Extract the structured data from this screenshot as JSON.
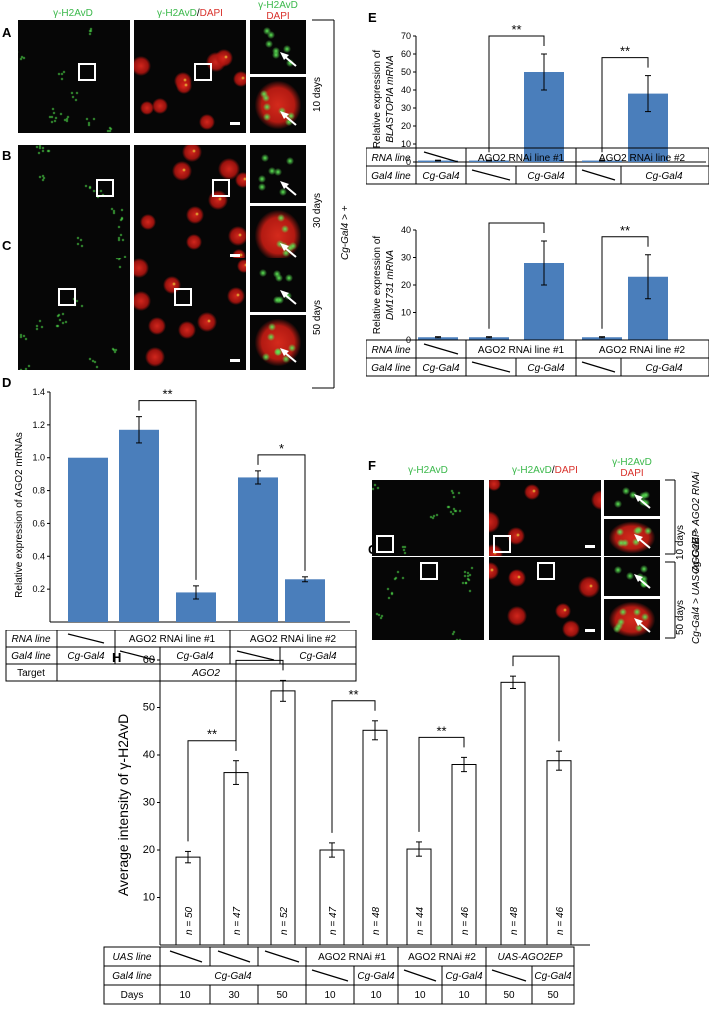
{
  "panel_labels": {
    "A": "A",
    "B": "B",
    "C": "C",
    "D": "D",
    "E": "E",
    "F": "F",
    "G": "G",
    "H": "H"
  },
  "micro_headers": {
    "col1": "γ-H2AvD",
    "col2_green": "γ-H2AvD",
    "col2_sep": "/",
    "col2_red": "DAPI",
    "col3_green": "γ-H2AvD",
    "col3_red": "DAPI"
  },
  "abc_side": {
    "genotype": "Cg-Gal4 > +",
    "rows": [
      "10 days",
      "30 days",
      "50 days"
    ]
  },
  "fg_side": {
    "F_days": "10 days",
    "F_genotype": "Cg-Gal4 > AGO2 RNAi",
    "G_days": "50 days",
    "G_genotype": "Cg-Gal4 > UAS-AGO2EP"
  },
  "colors": {
    "bar_fill": "#4a7ebb",
    "nucleus_red": "#c8201a",
    "focus_green": "#3fd43a",
    "micro_bg": "#060606"
  },
  "chart_data": [
    {
      "panel": "D",
      "type": "bar",
      "ylabel": "Relative expression of AGO2 mRNAs",
      "ylim": [
        0,
        1.4
      ],
      "yticks": [
        "0.2",
        "0.4",
        "0.6",
        "0.8",
        "1.0",
        "1.2",
        "1.4"
      ],
      "values": [
        1.0,
        1.17,
        0.18,
        0.88,
        0.26
      ],
      "errors": [
        0,
        0.08,
        0.04,
        0.04,
        0.015
      ],
      "significance": [
        {
          "from": 1,
          "to": 2,
          "label": "**"
        },
        {
          "from": 3,
          "to": 4,
          "label": "*"
        }
      ],
      "table": {
        "row_labels": [
          "RNA line",
          "Gal4 line",
          "Target"
        ],
        "rna": [
          "",
          "AGO2 RNAi line #1",
          "AGO2 RNAi line #2"
        ],
        "gal4": [
          "Cg-Gal4",
          "",
          "Cg-Gal4",
          "",
          "Cg-Gal4"
        ],
        "target": "AGO2"
      }
    },
    {
      "panel": "E1",
      "type": "bar",
      "ylabel_line1": "Relative expression of",
      "ylabel_line2": "BLASTOPIA mRNA",
      "ylim": [
        0,
        70
      ],
      "yticks": [
        "0",
        "10",
        "20",
        "30",
        "40",
        "50",
        "60",
        "70"
      ],
      "values": [
        0.8,
        0.8,
        50,
        0.8,
        38
      ],
      "errors": [
        0.2,
        0.2,
        10,
        0.2,
        10
      ],
      "significance": [
        {
          "from": 1,
          "to": 2,
          "label": "**"
        },
        {
          "from": 3,
          "to": 4,
          "label": "**"
        }
      ],
      "table": {
        "row_labels": [
          "RNA line",
          "Gal4 line"
        ],
        "rna": [
          "",
          "AGO2 RNAi line #1",
          "AGO2 RNAi line #2"
        ],
        "gal4": [
          "Cg-Gal4",
          "",
          "Cg-Gal4",
          "",
          "Cg-Gal4"
        ]
      }
    },
    {
      "panel": "E2",
      "type": "bar",
      "ylabel_line1": "Relative expression of",
      "ylabel_line2": "DM1731 mRNA",
      "ylim": [
        0,
        40
      ],
      "yticks": [
        "0",
        "10",
        "20",
        "30",
        "40"
      ],
      "values": [
        1,
        1,
        28,
        1,
        23
      ],
      "errors": [
        0.2,
        0.2,
        8,
        0.2,
        8
      ],
      "significance": [
        {
          "from": 1,
          "to": 2,
          "label": "**"
        },
        {
          "from": 3,
          "to": 4,
          "label": "**"
        }
      ],
      "table": {
        "row_labels": [
          "RNA line",
          "Gal4 line"
        ],
        "rna": [
          "",
          "AGO2 RNAi line #1",
          "AGO2 RNAi line #2"
        ],
        "gal4": [
          "Cg-Gal4",
          "",
          "Cg-Gal4",
          "",
          "Cg-Gal4"
        ]
      }
    },
    {
      "panel": "H",
      "type": "bar",
      "ylabel": "Average intensity of γ-H2AvD",
      "ylim": [
        0,
        60
      ],
      "yticks": [
        "10",
        "20",
        "30",
        "40",
        "50",
        "60"
      ],
      "values": [
        18.5,
        36.3,
        53.5,
        20,
        45.2,
        20.2,
        38,
        55.3,
        38.8
      ],
      "errors": [
        1.2,
        2.5,
        2.2,
        1.5,
        2,
        1.5,
        1.5,
        1.3,
        2
      ],
      "n_labels": [
        "n = 50",
        "n = 47",
        "n = 52",
        "n = 47",
        "n = 48",
        "n = 44",
        "n = 46",
        "n = 48",
        "n = 46"
      ],
      "significance": [
        {
          "from": 0,
          "to": 1,
          "label": "**"
        },
        {
          "from": 1,
          "to": 2,
          "label": "*"
        },
        {
          "from": 3,
          "to": 4,
          "label": "**"
        },
        {
          "from": 5,
          "to": 6,
          "label": "**"
        },
        {
          "from": 7,
          "to": 8,
          "label": "*"
        }
      ],
      "table": {
        "row_labels": [
          "UAS line",
          "Gal4 line",
          "Days"
        ],
        "uas": [
          "",
          "",
          "",
          "AGO2 RNAi #1",
          "AGO2 RNAi #2",
          "UAS-AGO2EP"
        ],
        "gal4": [
          "Cg-Gal4",
          "",
          "Cg-Gal4",
          "",
          "Cg-Gal4",
          "",
          "Cg-Gal4"
        ],
        "days": [
          "10",
          "30",
          "50",
          "10",
          "10",
          "10",
          "10",
          "50",
          "50"
        ]
      }
    }
  ]
}
